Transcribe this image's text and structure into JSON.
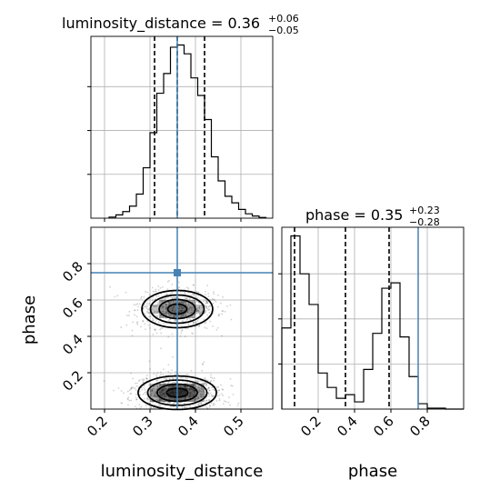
{
  "chart_data": {
    "type": "corner",
    "grid": true,
    "parameters": [
      "luminosity_distance",
      "phase"
    ],
    "truths": {
      "luminosity_distance": 0.36,
      "phase": 0.75
    },
    "panels": [
      {
        "id": "luminosity_distance",
        "type": "histogram",
        "title_label": "luminosity_distance = 0.36",
        "title_plus": "+0.06",
        "title_minus": "−0.05",
        "xlim": [
          0.17,
          0.57
        ],
        "quantiles": [
          0.31,
          0.36,
          0.42
        ],
        "truth": 0.36,
        "bin_edges": [
          0.21,
          0.225,
          0.24,
          0.255,
          0.27,
          0.285,
          0.3,
          0.315,
          0.33,
          0.345,
          0.36,
          0.375,
          0.39,
          0.405,
          0.42,
          0.435,
          0.45,
          0.465,
          0.48,
          0.495,
          0.51,
          0.525,
          0.54,
          0.555
        ],
        "counts": [
          0.5,
          1.5,
          3,
          5.5,
          11,
          23,
          39,
          57,
          66,
          78,
          79,
          75,
          64,
          56,
          45,
          28,
          17,
          10,
          7,
          4,
          2,
          1,
          0.3
        ]
      },
      {
        "id": "phase",
        "type": "histogram",
        "title_label": "phase = 0.35",
        "title_plus": "+0.23",
        "title_minus": "−0.28",
        "xlim": [
          0.0,
          1.0
        ],
        "quantiles": [
          0.07,
          0.35,
          0.59
        ],
        "truth": 0.75,
        "bin_edges": [
          0.0,
          0.05,
          0.1,
          0.15,
          0.2,
          0.25,
          0.3,
          0.35,
          0.4,
          0.45,
          0.5,
          0.55,
          0.6,
          0.65,
          0.7,
          0.75,
          0.8,
          0.85,
          0.9,
          0.95,
          1.0
        ],
        "counts": [
          45,
          96,
          75,
          58,
          20,
          12,
          6,
          8,
          4,
          22,
          42,
          67,
          70,
          40,
          18,
          3,
          0.5,
          0.5,
          0,
          0
        ]
      },
      {
        "id": "luminosity_distance_vs_phase",
        "type": "density2d",
        "x": "luminosity_distance",
        "y": "phase",
        "xlim": [
          0.17,
          0.57
        ],
        "ylim": [
          0.0,
          1.0
        ],
        "truth": [
          0.36,
          0.75
        ],
        "modes": [
          {
            "x": 0.36,
            "y": 0.55,
            "sx": 0.038,
            "sy": 0.05,
            "weight": 0.42
          },
          {
            "x": 0.36,
            "y": 0.09,
            "sx": 0.042,
            "sy": 0.045,
            "weight": 0.58
          }
        ]
      }
    ],
    "tick_labels": {
      "luminosity_distance": [
        "0.2",
        "0.3",
        "0.4",
        "0.5"
      ],
      "phase_x": [
        "0.2",
        "0.4",
        "0.6",
        "0.8"
      ],
      "phase_y": [
        "0.2",
        "0.4",
        "0.6",
        "0.8"
      ]
    },
    "tick_values": {
      "luminosity_distance": [
        0.2,
        0.3,
        0.4,
        0.5
      ],
      "phase_x": [
        0.2,
        0.4,
        0.6,
        0.8
      ],
      "phase_y": [
        0.2,
        0.4,
        0.6,
        0.8
      ]
    },
    "xlabels": [
      "luminosity_distance",
      "phase"
    ],
    "ylabel": "phase",
    "colors": {
      "truth": "#4682b4",
      "hist": "#000000",
      "quantile": "#000000",
      "grid": "#b0b0b0"
    }
  }
}
